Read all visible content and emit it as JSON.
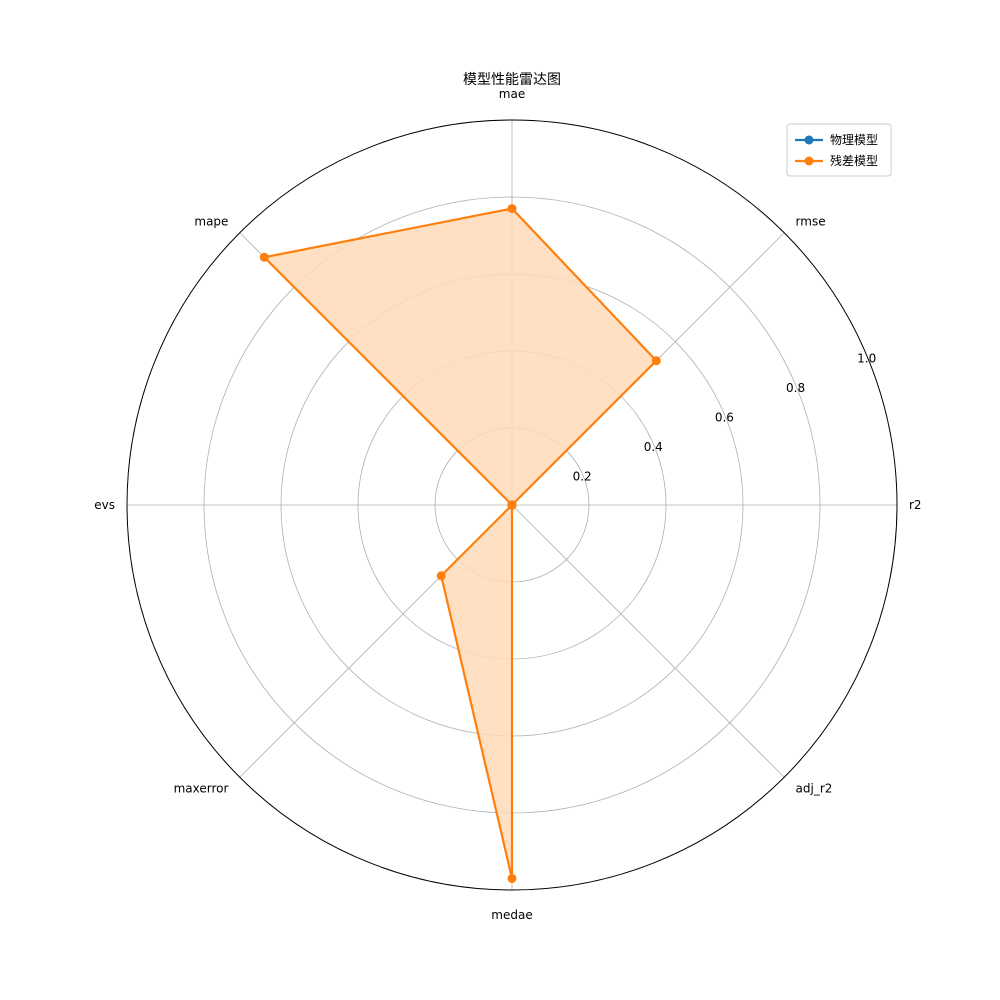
{
  "chart_data": {
    "type": "radar",
    "title": "模型性能雷达图",
    "axes": [
      "r2",
      "rmse",
      "mae",
      "mape",
      "evs",
      "maxerror",
      "medae",
      "adj_r2"
    ],
    "radial_ticks": [
      "0.2",
      "0.4",
      "0.6",
      "0.8",
      "1.0"
    ],
    "radial_tick_values": [
      0.2,
      0.4,
      0.6,
      0.8,
      1.0
    ],
    "rlim": [
      0,
      1.0
    ],
    "grid": true,
    "legend_position": "top-right",
    "series": [
      {
        "name": "物理模型",
        "color": "#1f77b4",
        "values": [
          0,
          0,
          0,
          0,
          0,
          0,
          0,
          0
        ]
      },
      {
        "name": "残差模型",
        "color": "#ff7f0e",
        "fill": "#ffdab9",
        "values": [
          0,
          0.53,
          0.77,
          0.91,
          0,
          0.26,
          0.97,
          0
        ]
      }
    ]
  }
}
